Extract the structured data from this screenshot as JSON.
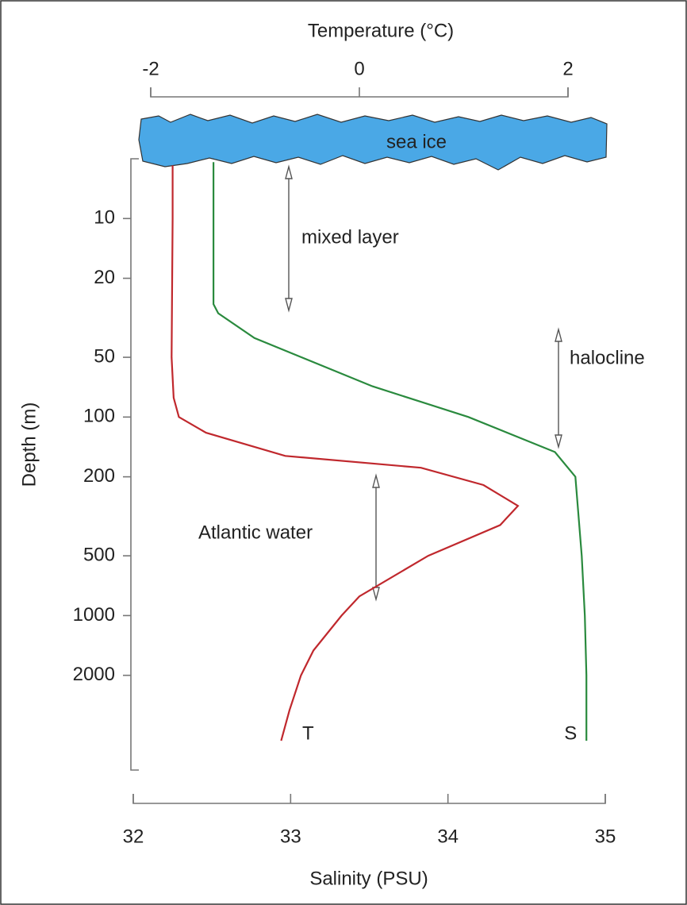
{
  "chart_data": {
    "type": "line",
    "title": "Temperature (°C)",
    "x_label": "Salinity (PSU)",
    "y_label": "Depth (m)",
    "xlim": [
      32,
      35
    ],
    "xticks": [
      32,
      33,
      34,
      35
    ],
    "x2lim": [
      -2,
      2
    ],
    "x2ticks": [
      -2,
      0,
      2
    ],
    "ylim": [
      5,
      6000
    ],
    "yticks": [
      10,
      20,
      50,
      100,
      200,
      500,
      1000,
      2000
    ],
    "y_scale": "log",
    "y_inverted": true,
    "annotations": [
      "sea ice",
      "mixed layer",
      "halocline",
      "Atlantic water"
    ],
    "series": [
      {
        "name": "T",
        "color": "#c0282d",
        "axis": "x2",
        "depth": [
          5.4,
          10,
          50,
          80,
          100,
          120,
          157,
          180,
          220,
          280,
          350,
          500,
          800,
          1000,
          1500,
          2000,
          3000,
          4270
        ],
        "values": [
          -1.79,
          -1.79,
          -1.8,
          -1.78,
          -1.73,
          -1.47,
          -0.71,
          0.59,
          1.19,
          1.52,
          1.35,
          0.66,
          0.0,
          -0.17,
          -0.44,
          -0.56,
          -0.67,
          -0.75
        ]
      },
      {
        "name": "S",
        "color": "#2a8a3e",
        "depth": [
          5.2,
          27,
          30,
          40,
          50,
          70,
          100,
          150,
          200,
          500,
          1000,
          2000,
          4270
        ],
        "values": [
          32.51,
          32.51,
          32.54,
          32.77,
          33.07,
          33.52,
          34.13,
          34.68,
          34.81,
          34.85,
          34.87,
          34.88,
          34.88
        ]
      }
    ]
  }
}
